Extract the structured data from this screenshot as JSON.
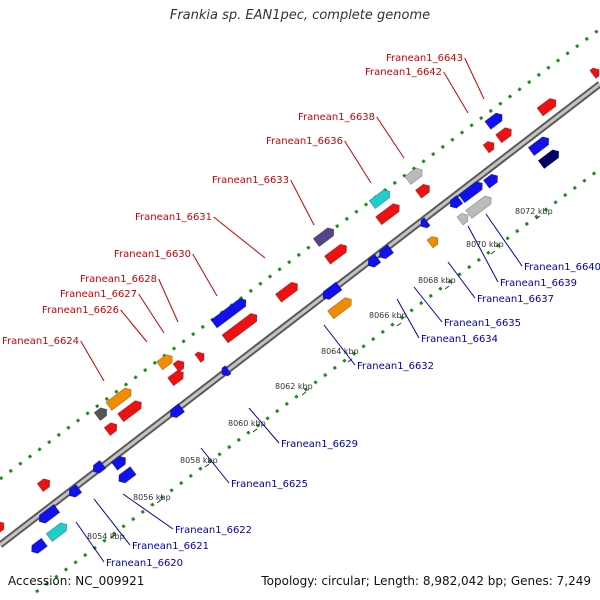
{
  "title": "Frankia sp. EAN1pec, complete genome",
  "footer": {
    "accession": "Accession: NC_009921",
    "summary": "Topology: circular; Length: 8,982,042 bp; Genes: 7,249"
  },
  "colors": {
    "backbone": "#8a8a8a",
    "dots": "#1a8c1a",
    "top_label": "#cc0000",
    "bottom_label": "#0000aa",
    "tick_label": "#333333"
  },
  "kbp_ticks": [
    "8054 kbp",
    "8056 kbp",
    "8058 kbp",
    "8060 kbp",
    "8062 kbp",
    "8064 kbp",
    "8066 kbp",
    "8068 kbp",
    "8070 kbp",
    "8072 kbp"
  ],
  "top_labels": [
    "Franean1_6624",
    "Franean1_6626",
    "Franean1_6627",
    "Franean1_6628",
    "Franean1_6630",
    "Franean1_6631",
    "Franean1_6633",
    "Franean1_6636",
    "Franean1_6638",
    "Franean1_6642",
    "Franean1_6643"
  ],
  "bottom_labels": [
    "Franean1_6620",
    "Franean1_6621",
    "Franean1_6622",
    "Franean1_6625",
    "Franean1_6629",
    "Franean1_6632",
    "Franean1_6634",
    "Franean1_6635",
    "Franean1_6637",
    "Franean1_6639",
    "Franean1_6640"
  ],
  "legend_gene_colors": [
    "red",
    "blue",
    "orange",
    "grey",
    "teal",
    "purple",
    "navy",
    "olive"
  ]
}
